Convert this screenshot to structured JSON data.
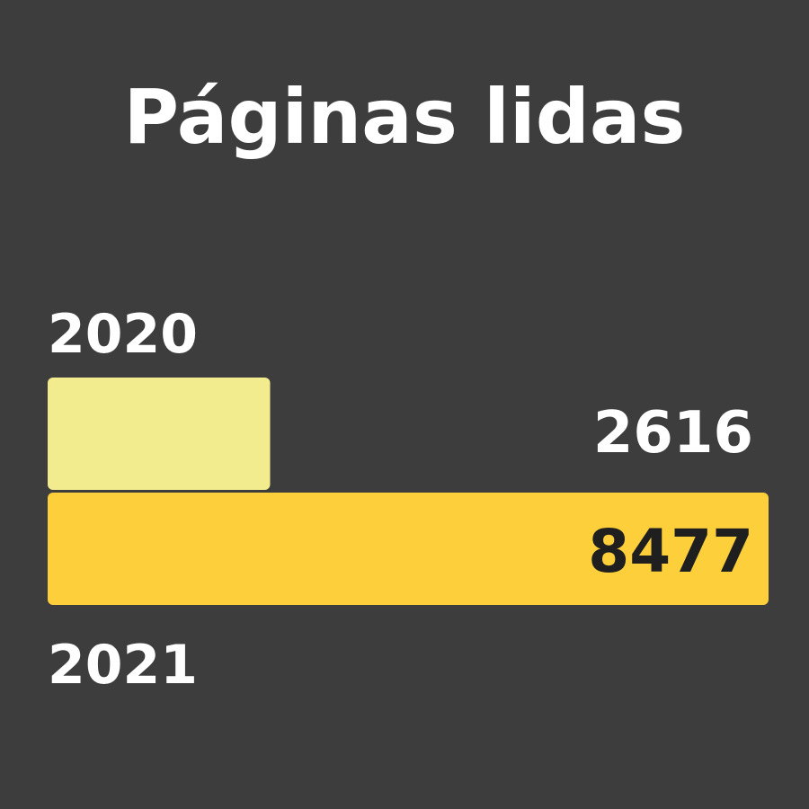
{
  "chart_data": {
    "type": "bar",
    "title": "Páginas lidas",
    "categories": [
      "2020",
      "2021"
    ],
    "values": [
      2616,
      8477
    ],
    "orientation": "horizontal",
    "value_labels": [
      "2616",
      "8477"
    ],
    "colors": {
      "background": "#3d3d3d",
      "text": "#ffffff",
      "bar_2020": "#f2ec8f",
      "bar_2021": "#fdd03b",
      "value_label_inside": "#1f1f1f"
    },
    "xlim": [
      0,
      8477
    ],
    "grid": false,
    "legend": "none"
  }
}
